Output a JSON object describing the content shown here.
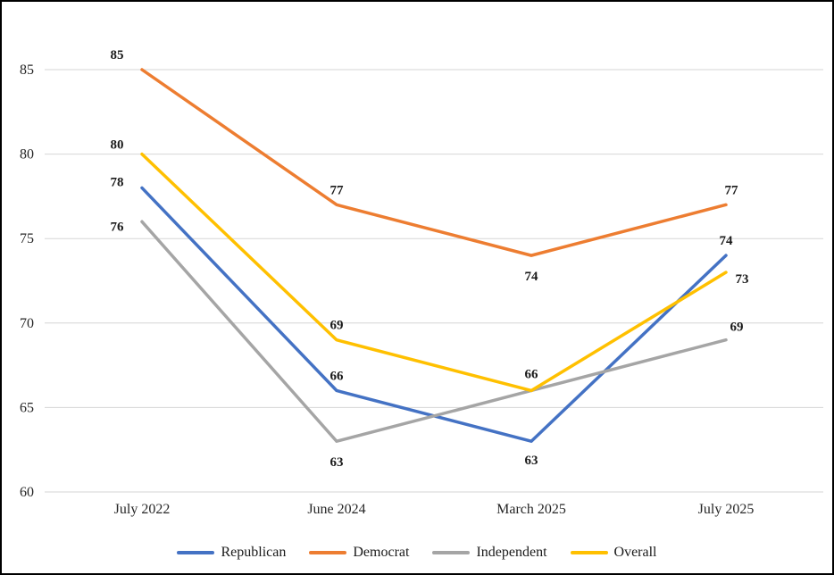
{
  "chart_data": {
    "type": "line",
    "title": "",
    "xlabel": "",
    "ylabel": "",
    "categories": [
      "July 2022",
      "June 2024",
      "March 2025",
      "July 2025"
    ],
    "series": [
      {
        "name": "Republican",
        "color": "#4472C4",
        "values": [
          78,
          66,
          63,
          74
        ]
      },
      {
        "name": "Democrat",
        "color": "#ED7D31",
        "values": [
          85,
          77,
          74,
          77
        ]
      },
      {
        "name": "Independent",
        "color": "#A5A5A5",
        "values": [
          76,
          63,
          66,
          69
        ]
      },
      {
        "name": "Overall",
        "color": "#FFC000",
        "values": [
          80,
          69,
          66,
          73
        ]
      }
    ],
    "yticks": [
      60,
      65,
      70,
      75,
      80,
      85
    ],
    "ylim": [
      60,
      85
    ],
    "grid": "horizontal",
    "gridline_color": "#D6D6D6",
    "legend_position": "bottom",
    "data_labels_shown": {
      "Republican": [
        true,
        true,
        true,
        true
      ],
      "Democrat": [
        true,
        true,
        true,
        true
      ],
      "Independent": [
        true,
        true,
        false,
        true
      ],
      "Overall": [
        true,
        true,
        true,
        true
      ]
    }
  }
}
